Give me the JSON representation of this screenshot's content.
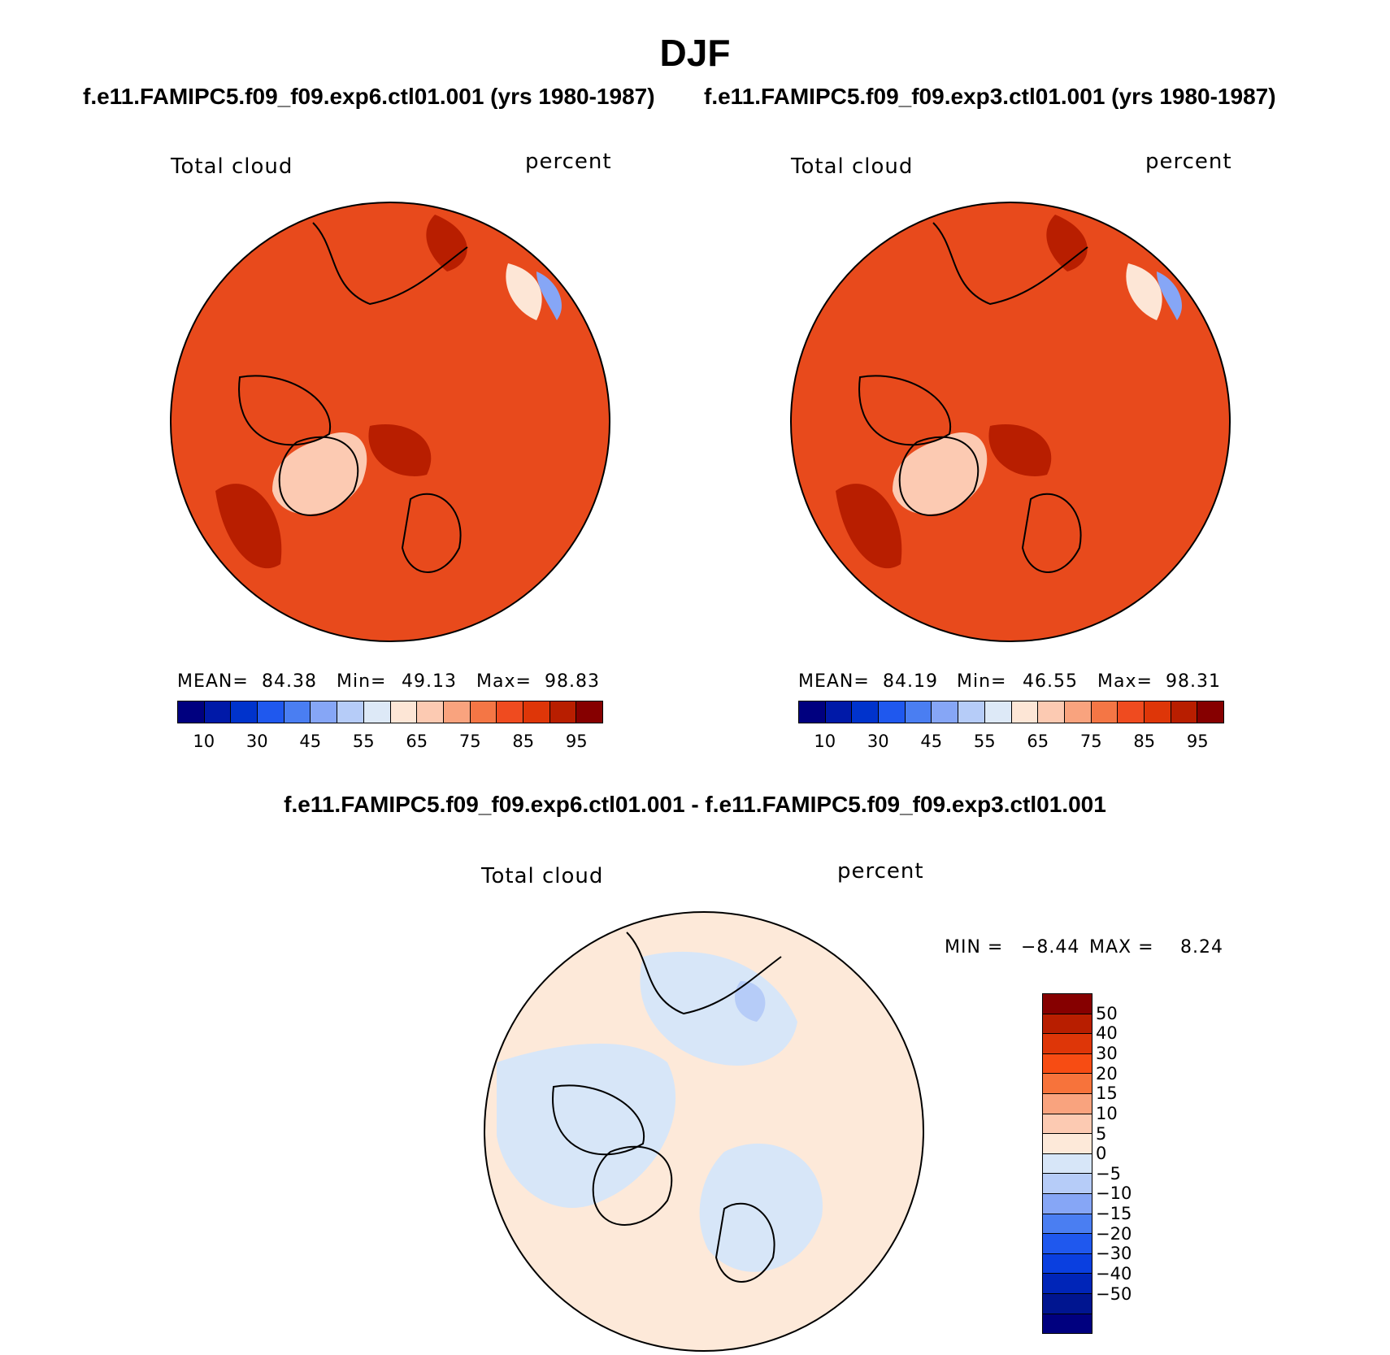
{
  "title": "DJF",
  "panels": [
    {
      "case_title": "f.e11.FAMIPC5.f09_f09.exp6.ctl01.001 (yrs 1980-1987)",
      "left_label": "Total cloud",
      "right_label": "percent",
      "stats": {
        "mean_label": "MEAN=",
        "mean": "84.38",
        "min_label": "Min=",
        "min": "49.13",
        "max_label": "Max=",
        "max": "98.83"
      },
      "colorbar": {
        "colors": [
          "#00007f",
          "#0019a8",
          "#0033cc",
          "#1f58ee",
          "#4a7ef2",
          "#86a6f6",
          "#b6ccf8",
          "#dde9f7",
          "#fde6d6",
          "#fccab2",
          "#f9a37e",
          "#f47645",
          "#ef4b1f",
          "#de3608",
          "#b81e00",
          "#860000"
        ],
        "tick_labels": [
          "10",
          "30",
          "45",
          "55",
          "65",
          "75",
          "85",
          "95"
        ]
      },
      "map_fill": "#e84a1c"
    },
    {
      "case_title": "f.e11.FAMIPC5.f09_f09.exp3.ctl01.001 (yrs 1980-1987)",
      "left_label": "Total cloud",
      "right_label": "percent",
      "stats": {
        "mean_label": "MEAN=",
        "mean": "84.19",
        "min_label": "Min=",
        "min": "46.55",
        "max_label": "Max=",
        "max": "98.31"
      },
      "colorbar": {
        "colors": [
          "#00007f",
          "#0019a8",
          "#0033cc",
          "#1f58ee",
          "#4a7ef2",
          "#86a6f6",
          "#b6ccf8",
          "#dde9f7",
          "#fde6d6",
          "#fccab2",
          "#f9a37e",
          "#f47645",
          "#ef4b1f",
          "#de3608",
          "#b81e00",
          "#860000"
        ],
        "tick_labels": [
          "10",
          "30",
          "45",
          "55",
          "65",
          "75",
          "85",
          "95"
        ]
      },
      "map_fill": "#e84a1c"
    }
  ],
  "diff": {
    "title": "f.e11.FAMIPC5.f09_f09.exp6.ctl01.001 - f.e11.FAMIPC5.f09_f09.exp3.ctl01.001",
    "left_label": "Total cloud",
    "right_label": "percent",
    "min_label": "MIN =",
    "min": "−8.44",
    "max_label": "MAX =",
    "max": "8.24",
    "colorbar": {
      "colors": [
        "#860000",
        "#b81e00",
        "#de3608",
        "#f74c13",
        "#f7733b",
        "#f9a37e",
        "#fccab2",
        "#fde9d9",
        "#d7e6f8",
        "#b6ccf8",
        "#86a6f6",
        "#4a7ef2",
        "#1f58ee",
        "#0a3fe0",
        "#0025b8",
        "#001590",
        "#00007f"
      ],
      "tick_labels": [
        "50",
        "40",
        "30",
        "20",
        "15",
        "10",
        "5",
        "0",
        "−5",
        "−10",
        "−15",
        "−20",
        "−30",
        "−40",
        "−50"
      ]
    },
    "map_fill": "#fde9d9"
  }
}
